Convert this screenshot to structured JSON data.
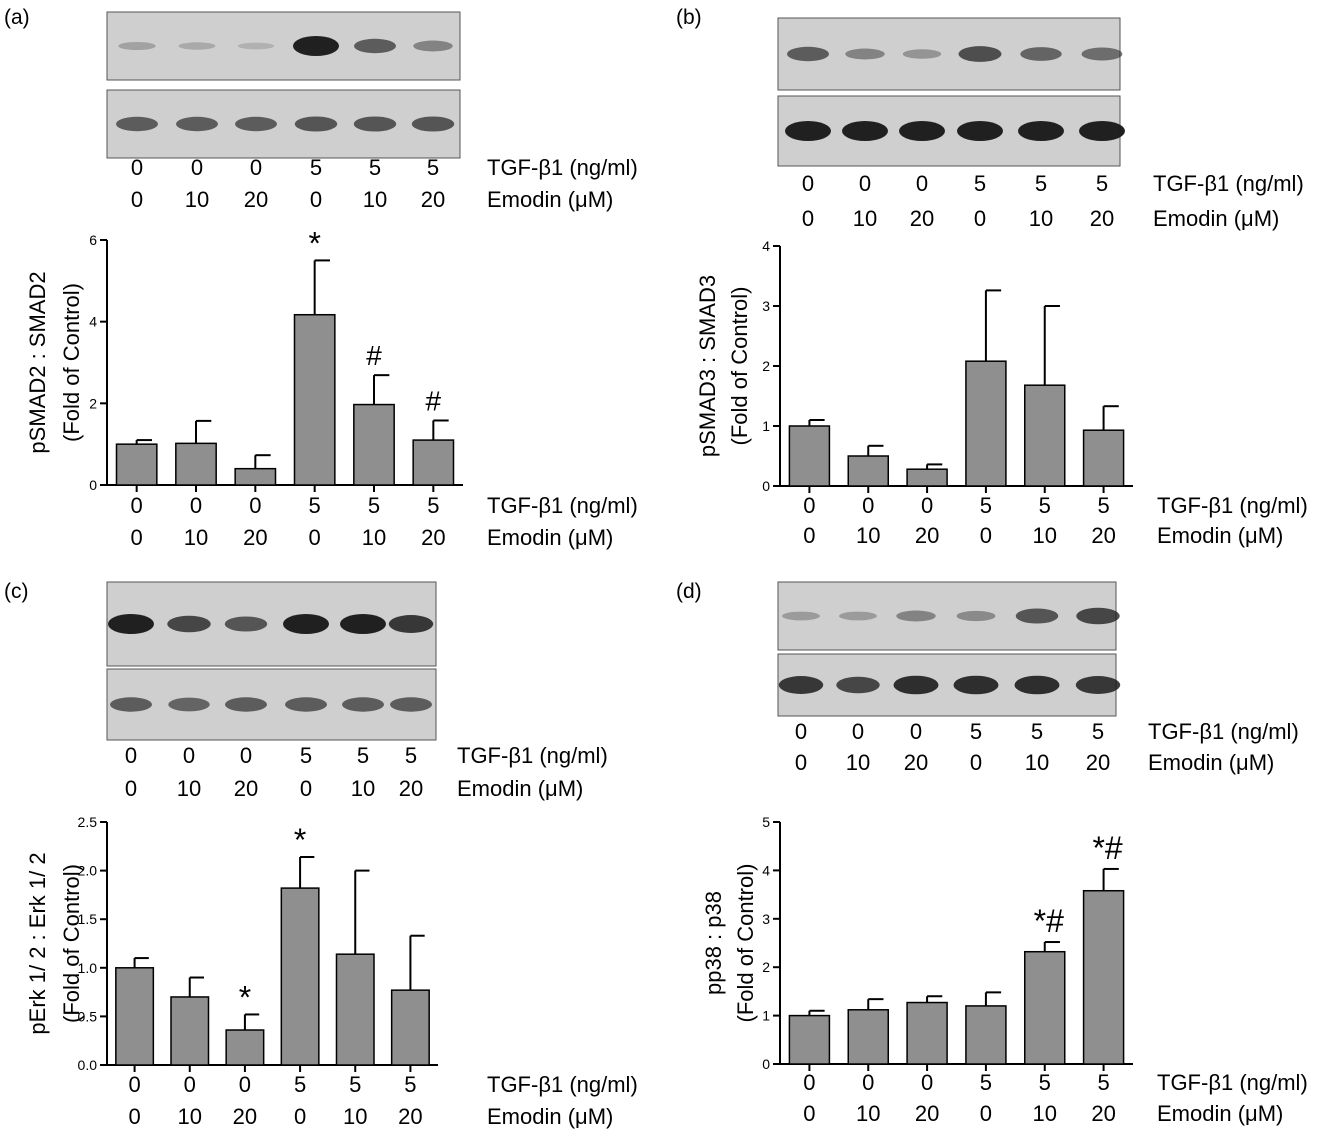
{
  "colors": {
    "bar": "#8f8f8f",
    "axis": "#000000",
    "blot_bg": "#cfcfcf",
    "band": "#1a1a1a"
  },
  "condition_labels": {
    "tgf": [
      "0",
      "0",
      "0",
      "5",
      "5",
      "5"
    ],
    "emodin": [
      "0",
      "10",
      "20",
      "0",
      "10",
      "20"
    ],
    "tgf_label": "TGF-β1 (ng/ml)",
    "emodin_label": "Emodin (μM)"
  },
  "chart_data": [
    {
      "panel": "(a)",
      "type": "bar",
      "categories": [
        "0 / 0",
        "0 / 10",
        "0 / 20",
        "5 / 0",
        "5 / 10",
        "5 / 20"
      ],
      "values": [
        1.0,
        1.02,
        0.4,
        4.17,
        1.97,
        1.1
      ],
      "errors": [
        0.1,
        0.55,
        0.33,
        1.33,
        0.72,
        0.48
      ],
      "annotations": [
        "",
        "",
        "",
        "*",
        "#",
        "#"
      ],
      "ylabel": [
        "pSMAD2 : SMAD2",
        "(Fold of Control)"
      ],
      "ylim": [
        0,
        6
      ],
      "yticks": [
        "0",
        "2",
        "4",
        "6"
      ],
      "blot_band_intensity": [
        [
          0.15,
          0.1,
          0.05,
          1.0,
          0.6,
          0.35
        ],
        [
          0.6,
          0.6,
          0.6,
          0.65,
          0.65,
          0.65
        ]
      ]
    },
    {
      "panel": "(b)",
      "type": "bar",
      "categories": [
        "0 / 0",
        "0 / 10",
        "0 / 20",
        "5 / 0",
        "5 / 10",
        "5 / 20"
      ],
      "values": [
        1.0,
        0.5,
        0.28,
        2.08,
        1.68,
        0.93
      ],
      "errors": [
        0.1,
        0.17,
        0.08,
        1.18,
        1.32,
        0.4
      ],
      "annotations": [
        "",
        "",
        "",
        "",
        "",
        ""
      ],
      "ylabel": [
        "pSMAD3 : SMAD3",
        "(Fold of Control)"
      ],
      "ylim": [
        0,
        4
      ],
      "yticks": [
        "0",
        "1",
        "2",
        "3",
        "4"
      ],
      "blot_band_intensity": [
        [
          0.6,
          0.35,
          0.25,
          0.7,
          0.55,
          0.5
        ],
        [
          1.0,
          1.0,
          1.0,
          1.0,
          1.0,
          1.0
        ]
      ]
    },
    {
      "panel": "(c)",
      "type": "bar",
      "categories": [
        "0 / 0",
        "0 / 10",
        "0 / 20",
        "5 / 0",
        "5 / 10",
        "5 / 20"
      ],
      "values": [
        1.0,
        0.7,
        0.36,
        1.82,
        1.14,
        0.77
      ],
      "errors": [
        0.1,
        0.2,
        0.16,
        0.32,
        0.86,
        0.56
      ],
      "annotations": [
        "",
        "",
        "*",
        "*",
        "",
        ""
      ],
      "ylabel": [
        "pErk 1/ 2 : Erk 1/ 2",
        "(Fold of Control)"
      ],
      "ylim": [
        0,
        2.5
      ],
      "yticks": [
        "0.0",
        "0.5",
        "1.0",
        "1.5",
        "2.0",
        "2.5"
      ],
      "blot_band_intensity": [
        [
          1.0,
          0.75,
          0.65,
          1.0,
          1.0,
          0.85
        ],
        [
          0.6,
          0.55,
          0.6,
          0.6,
          0.6,
          0.6
        ]
      ]
    },
    {
      "panel": "(d)",
      "type": "bar",
      "categories": [
        "0 / 0",
        "0 / 10",
        "0 / 20",
        "5 / 0",
        "5 / 10",
        "5 / 20"
      ],
      "values": [
        1.0,
        1.12,
        1.27,
        1.2,
        2.32,
        3.58
      ],
      "errors": [
        0.1,
        0.22,
        0.13,
        0.28,
        0.2,
        0.45
      ],
      "annotations": [
        "",
        "",
        "",
        "",
        "*#",
        "*#"
      ],
      "ylabel": [
        "pp38 : p38",
        "(Fold of Control)"
      ],
      "ylim": [
        0,
        5
      ],
      "yticks": [
        "0",
        "1",
        "2",
        "3",
        "4",
        "5"
      ],
      "blot_band_intensity": [
        [
          0.2,
          0.2,
          0.35,
          0.3,
          0.65,
          0.75
        ],
        [
          0.85,
          0.75,
          0.9,
          0.9,
          0.9,
          0.85
        ]
      ]
    }
  ]
}
